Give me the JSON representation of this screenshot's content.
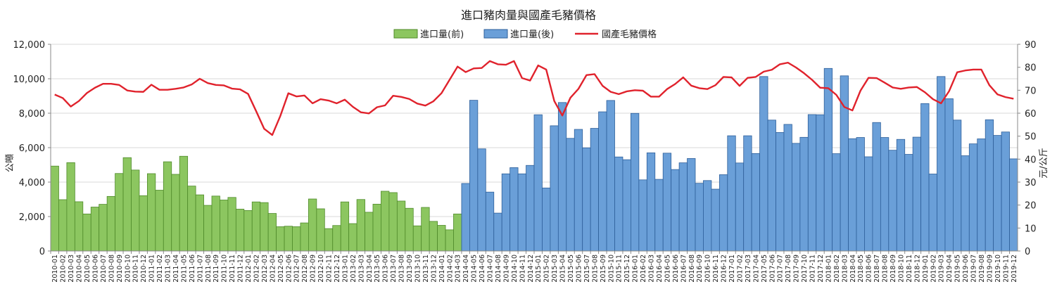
{
  "chart_data": {
    "type": "bar",
    "title": "進口豬肉量與國產毛豬價格",
    "ylabel_left": "公噸",
    "ylabel_right": "元/公斤",
    "ylim_left": [
      0,
      12000
    ],
    "ylim_right": [
      0,
      90
    ],
    "yticks_left": [
      "0",
      "2,000",
      "4,000",
      "6,000",
      "8,000",
      "10,000",
      "12,000"
    ],
    "yticks_right": [
      "0",
      "10",
      "20",
      "30",
      "40",
      "50",
      "60",
      "70",
      "80",
      "90"
    ],
    "legend": [
      "進口量(前)",
      "進口量(後)",
      "國產毛豬價格"
    ],
    "legend_position": "top",
    "colors": {
      "before_fill": "#8cc660",
      "before_stroke": "#4f8a2a",
      "after_fill": "#6a9fd8",
      "after_stroke": "#2e5f9a",
      "price": "#e0222c",
      "axis": "#888888"
    },
    "categories": [
      "2010-01",
      "2010-02",
      "2010-03",
      "2010-04",
      "2010-05",
      "2010-06",
      "2010-07",
      "2010-08",
      "2010-09",
      "2010-10",
      "2010-11",
      "2010-12",
      "2011-01",
      "2011-02",
      "2011-03",
      "2011-04",
      "2011-05",
      "2011-06",
      "2011-07",
      "2011-08",
      "2011-09",
      "2011-10",
      "2011-11",
      "2011-12",
      "2012-01",
      "2012-02",
      "2012-03",
      "2012-04",
      "2012-05",
      "2012-06",
      "2012-07",
      "2012-08",
      "2012-09",
      "2012-10",
      "2012-11",
      "2012-12",
      "2013-01",
      "2013-02",
      "2013-03",
      "2013-04",
      "2013-05",
      "2013-06",
      "2013-07",
      "2013-08",
      "2013-09",
      "2013-10",
      "2013-11",
      "2013-12",
      "2014-01",
      "2014-02",
      "2014-03",
      "2014-04",
      "2014-05",
      "2014-06",
      "2014-07",
      "2014-08",
      "2014-09",
      "2014-10",
      "2014-11",
      "2014-12",
      "2015-01",
      "2015-02",
      "2015-03",
      "2015-04",
      "2015-05",
      "2015-06",
      "2015-07",
      "2015-08",
      "2015-09",
      "2015-10",
      "2015-11",
      "2015-12",
      "2016-01",
      "2016-02",
      "2016-03",
      "2016-04",
      "2016-05",
      "2016-06",
      "2016-07",
      "2016-08",
      "2016-09",
      "2016-10",
      "2016-11",
      "2016-12",
      "2017-01",
      "2017-02",
      "2017-03",
      "2017-04",
      "2017-05",
      "2017-06",
      "2017-07",
      "2017-08",
      "2017-09",
      "2017-10",
      "2017-11",
      "2017-12",
      "2018-01",
      "2018-02",
      "2018-03",
      "2018-04",
      "2018-05",
      "2018-06",
      "2018-07",
      "2018-08",
      "2018-09",
      "2018-10",
      "2018-11",
      "2018-12",
      "2019-01",
      "2019-02",
      "2019-03",
      "2019-04",
      "2019-05",
      "2019-06",
      "2019-07",
      "2019-08",
      "2019-09",
      "2019-10",
      "2019-11",
      "2019-12"
    ],
    "series": [
      {
        "name": "進口量(前)",
        "type": "bar",
        "axis": "left",
        "values": [
          4930,
          2980,
          5130,
          2860,
          2150,
          2550,
          2710,
          3170,
          4500,
          5420,
          4700,
          3210,
          4490,
          3530,
          5180,
          4450,
          5500,
          3770,
          3260,
          2650,
          3190,
          2960,
          3110,
          2430,
          2350,
          2850,
          2810,
          2180,
          1410,
          1440,
          1410,
          1630,
          3020,
          2450,
          1300,
          1480,
          2850,
          1590,
          2990,
          2250,
          2720,
          3470,
          3390,
          2900,
          2480,
          1460,
          2530,
          1720,
          1490,
          1230,
          2150,
          null,
          null,
          null,
          null,
          null,
          null,
          null,
          null,
          null,
          null,
          null,
          null,
          null,
          null,
          null,
          null,
          null,
          null,
          null,
          null,
          null,
          null,
          null,
          null,
          null,
          null,
          null,
          null,
          null,
          null,
          null,
          null,
          null,
          null,
          null,
          null,
          null,
          null,
          null,
          null,
          null,
          null,
          null,
          null,
          null,
          null,
          null,
          null,
          null,
          null,
          null,
          null,
          null,
          null,
          null,
          null,
          null,
          null,
          null,
          null,
          null,
          null,
          null,
          null,
          null,
          null,
          null,
          null,
          null
        ]
      },
      {
        "name": "進口量(後)",
        "type": "bar",
        "axis": "left",
        "values": [
          null,
          null,
          null,
          null,
          null,
          null,
          null,
          null,
          null,
          null,
          null,
          null,
          null,
          null,
          null,
          null,
          null,
          null,
          null,
          null,
          null,
          null,
          null,
          null,
          null,
          null,
          null,
          null,
          null,
          null,
          null,
          null,
          null,
          null,
          null,
          null,
          null,
          null,
          null,
          null,
          null,
          null,
          null,
          null,
          null,
          null,
          null,
          null,
          null,
          null,
          null,
          3920,
          8750,
          5930,
          3420,
          2200,
          4480,
          4840,
          4480,
          4970,
          7910,
          3660,
          7270,
          8620,
          6540,
          7060,
          5990,
          7120,
          8080,
          8740,
          5460,
          5300,
          7990,
          4130,
          5700,
          4160,
          5680,
          4730,
          5120,
          5370,
          3930,
          4090,
          3590,
          4430,
          6690,
          5110,
          6690,
          5660,
          10130,
          7600,
          6880,
          7350,
          6250,
          6600,
          7920,
          7910,
          10600,
          5650,
          10170,
          6520,
          6590,
          5470,
          7460,
          6590,
          5850,
          6480,
          5610,
          6610,
          8560,
          4470,
          10130,
          8840,
          7600,
          5530,
          6220,
          6510,
          7620,
          6710,
          6910,
          5350
        ]
      },
      {
        "name": "國產毛豬價格",
        "type": "line",
        "axis": "right",
        "values": [
          68.1,
          66.6,
          62.9,
          65.3,
          68.8,
          71.1,
          72.8,
          72.8,
          72.3,
          69.9,
          69.4,
          69.3,
          72.4,
          70.2,
          70.2,
          70.6,
          71.2,
          72.5,
          75.0,
          73.1,
          72.3,
          72.1,
          70.7,
          70.4,
          68.4,
          60.9,
          53.2,
          50.5,
          58.8,
          68.7,
          67.3,
          67.7,
          64.3,
          66.1,
          65.5,
          64.3,
          65.9,
          62.8,
          60.4,
          59.9,
          62.6,
          63.4,
          67.6,
          67.1,
          66.2,
          64.2,
          63.3,
          65.2,
          68.7,
          74.5,
          80.3,
          77.9,
          79.5,
          79.7,
          82.7,
          81.3,
          81.1,
          82.7,
          75.3,
          74.2,
          80.8,
          79.0,
          65.3,
          59.0,
          66.7,
          70.6,
          76.6,
          77.0,
          71.9,
          69.3,
          68.3,
          69.5,
          70.0,
          69.8,
          67.2,
          67.2,
          70.5,
          72.7,
          75.6,
          72.0,
          70.9,
          70.5,
          72.2,
          75.8,
          75.6,
          71.9,
          75.4,
          75.8,
          78.1,
          78.9,
          81.3,
          82.0,
          79.9,
          77.4,
          74.5,
          71.1,
          70.9,
          68.0,
          62.7,
          61.2,
          69.8,
          75.4,
          75.3,
          73.3,
          71.2,
          70.6,
          71.2,
          71.4,
          69.1,
          66.1,
          64.3,
          69.6,
          77.8,
          78.6,
          79.0,
          79.0,
          72.2,
          68.2,
          67.0,
          66.3
        ]
      }
    ]
  }
}
